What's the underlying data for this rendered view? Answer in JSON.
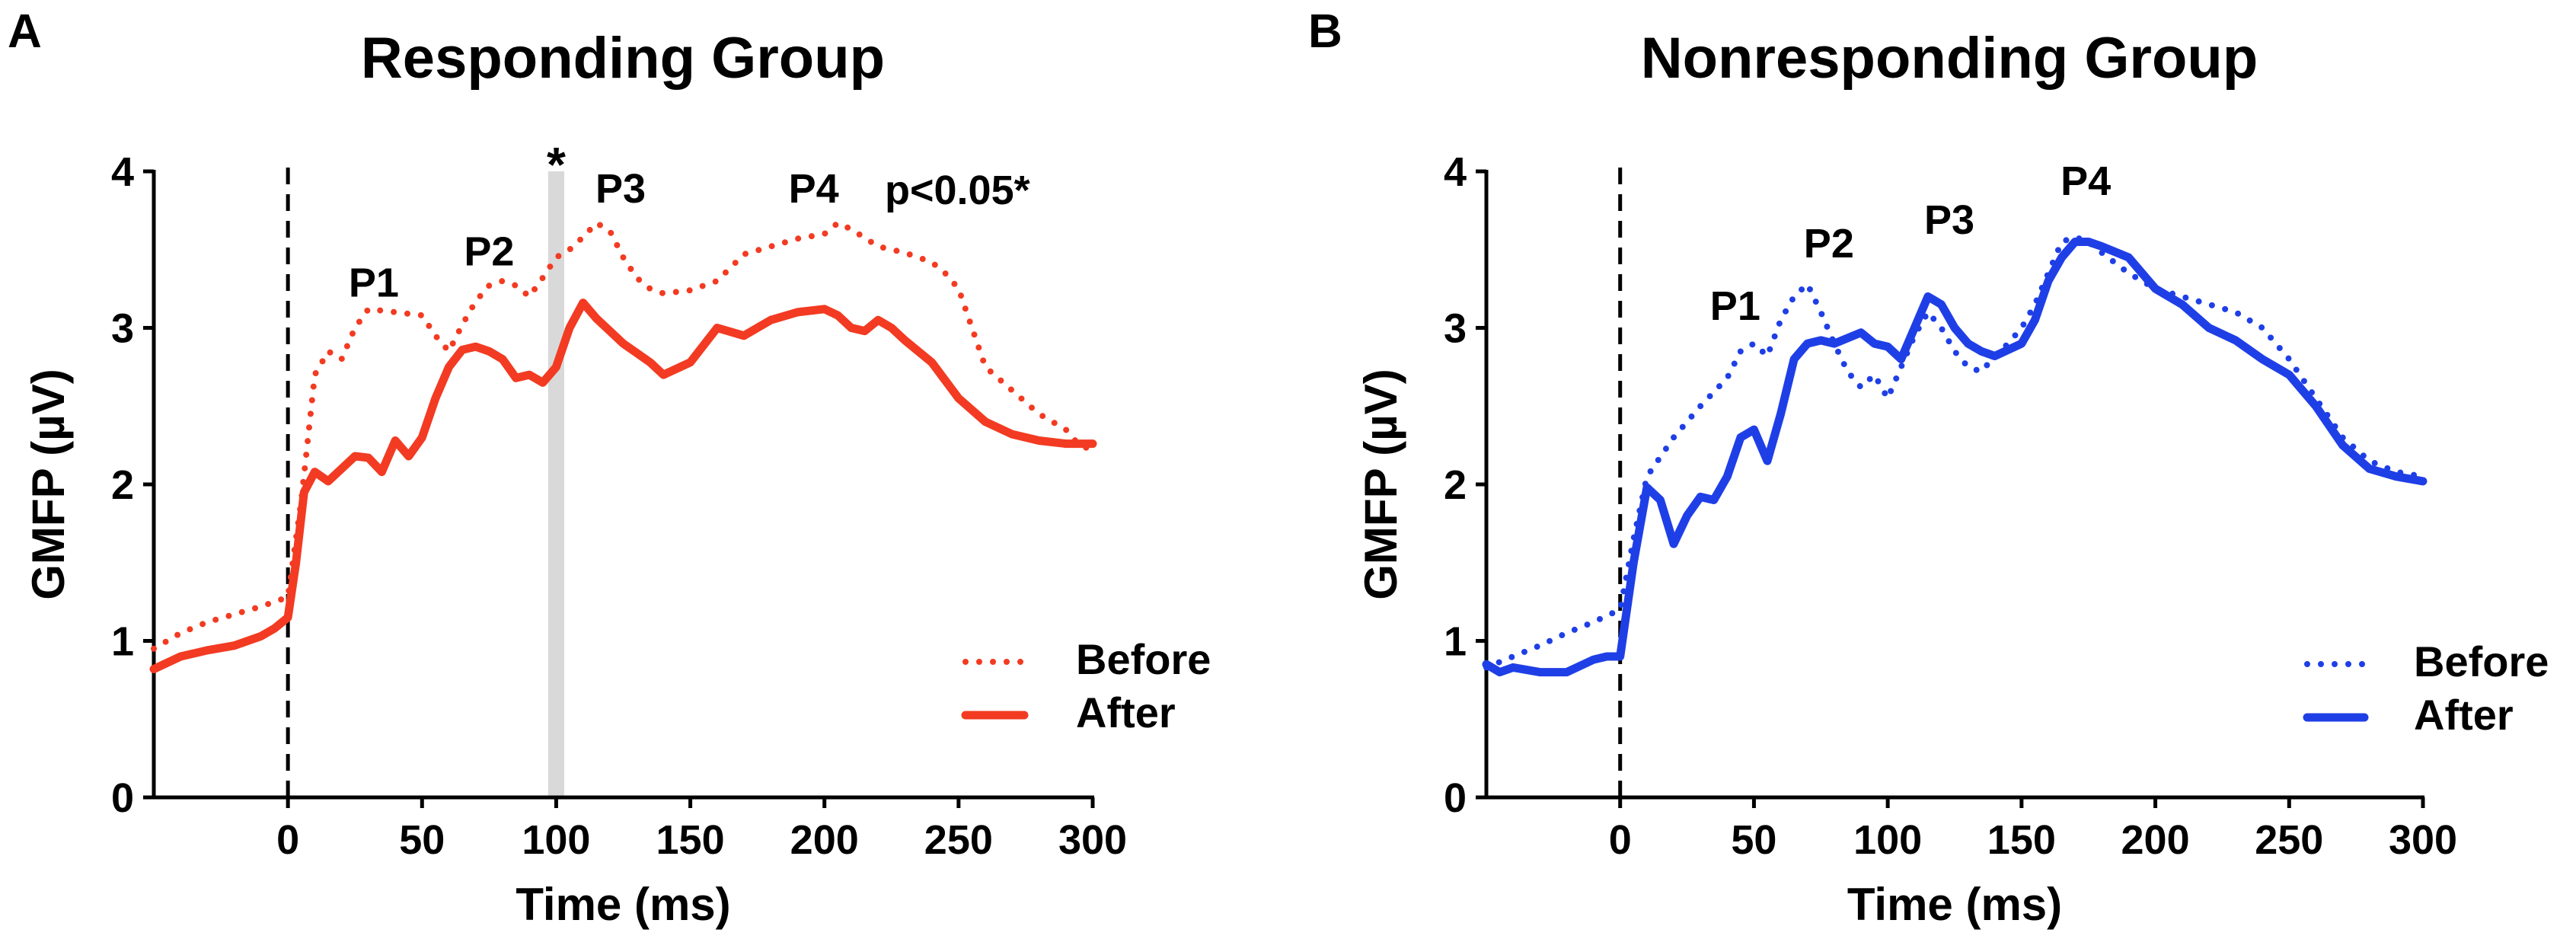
{
  "chart_data": [
    {
      "type": "line",
      "panel_label": "A",
      "title": "Responding Group",
      "xlabel": "Time (ms)",
      "ylabel": "GMFP (µV)",
      "xlim": [
        -50,
        300
      ],
      "ylim": [
        0,
        4
      ],
      "xticks": [
        0,
        50,
        100,
        150,
        200,
        250,
        300
      ],
      "yticks": [
        0,
        1,
        2,
        3,
        4
      ],
      "vline_x": 0,
      "shaded_x": [
        97,
        103
      ],
      "shaded_marker": "*",
      "significance_text": "p<0.05*",
      "legend_position": "bottom-right",
      "peak_labels": [
        {
          "text": "P1",
          "x": 32,
          "y": 3.2
        },
        {
          "text": "P2",
          "x": 75,
          "y": 3.4
        },
        {
          "text": "P3",
          "x": 124,
          "y": 3.8
        },
        {
          "text": "P4",
          "x": 196,
          "y": 3.8
        }
      ],
      "series": [
        {
          "name": "Before",
          "style": "dotted",
          "color": "#f23b22",
          "x": [
            -50,
            -40,
            -30,
            -20,
            -10,
            0,
            5,
            10,
            15,
            20,
            25,
            30,
            40,
            50,
            55,
            60,
            65,
            70,
            75,
            80,
            85,
            90,
            95,
            100,
            105,
            110,
            115,
            120,
            125,
            130,
            135,
            140,
            150,
            160,
            170,
            180,
            190,
            200,
            205,
            210,
            220,
            230,
            240,
            245,
            250,
            255,
            260,
            270,
            280,
            290,
            295,
            300
          ],
          "y": [
            0.95,
            1.05,
            1.12,
            1.17,
            1.22,
            1.28,
            1.9,
            2.7,
            2.85,
            2.8,
            3.0,
            3.12,
            3.1,
            3.08,
            2.95,
            2.85,
            3.02,
            3.17,
            3.27,
            3.3,
            3.27,
            3.2,
            3.32,
            3.45,
            3.5,
            3.58,
            3.67,
            3.62,
            3.45,
            3.32,
            3.25,
            3.22,
            3.24,
            3.3,
            3.47,
            3.52,
            3.57,
            3.6,
            3.67,
            3.63,
            3.52,
            3.48,
            3.42,
            3.35,
            3.25,
            3.0,
            2.75,
            2.6,
            2.45,
            2.35,
            2.25,
            2.22
          ]
        },
        {
          "name": "After",
          "style": "solid",
          "color": "#f23b22",
          "x": [
            -50,
            -40,
            -30,
            -20,
            -10,
            -5,
            0,
            3,
            6,
            10,
            15,
            20,
            25,
            30,
            35,
            40,
            45,
            50,
            55,
            60,
            65,
            70,
            75,
            80,
            85,
            90,
            95,
            100,
            105,
            110,
            115,
            120,
            125,
            130,
            135,
            140,
            150,
            160,
            170,
            175,
            180,
            190,
            200,
            205,
            210,
            215,
            220,
            225,
            230,
            240,
            250,
            260,
            270,
            280,
            290,
            300
          ],
          "y": [
            0.82,
            0.9,
            0.94,
            0.97,
            1.03,
            1.08,
            1.15,
            1.5,
            1.95,
            2.08,
            2.02,
            2.1,
            2.18,
            2.17,
            2.08,
            2.28,
            2.18,
            2.3,
            2.55,
            2.75,
            2.86,
            2.88,
            2.85,
            2.8,
            2.68,
            2.7,
            2.65,
            2.75,
            3.0,
            3.16,
            3.06,
            2.98,
            2.9,
            2.84,
            2.78,
            2.7,
            2.78,
            3.0,
            2.95,
            3.0,
            3.05,
            3.1,
            3.12,
            3.08,
            3.0,
            2.98,
            3.05,
            3.0,
            2.92,
            2.78,
            2.55,
            2.4,
            2.32,
            2.28,
            2.26,
            2.26
          ]
        }
      ]
    },
    {
      "type": "line",
      "panel_label": "B",
      "title": "Nonresponding Group",
      "xlabel": "Time (ms)",
      "ylabel": "GMFP (µV)",
      "xlim": [
        -50,
        300
      ],
      "ylim": [
        0,
        4
      ],
      "xticks": [
        0,
        50,
        100,
        150,
        200,
        250,
        300
      ],
      "yticks": [
        0,
        1,
        2,
        3,
        4
      ],
      "vline_x": 0,
      "legend_position": "bottom-right",
      "peak_labels": [
        {
          "text": "P1",
          "x": 43,
          "y": 3.05
        },
        {
          "text": "P2",
          "x": 78,
          "y": 3.45
        },
        {
          "text": "P3",
          "x": 123,
          "y": 3.6
        },
        {
          "text": "P4",
          "x": 174,
          "y": 3.85
        }
      ],
      "series": [
        {
          "name": "Before",
          "style": "dotted",
          "color": "#1f3fe6",
          "x": [
            -50,
            -40,
            -30,
            -20,
            -10,
            0,
            5,
            10,
            20,
            30,
            40,
            45,
            50,
            55,
            60,
            65,
            70,
            75,
            80,
            85,
            90,
            95,
            100,
            105,
            110,
            115,
            120,
            125,
            130,
            135,
            140,
            145,
            150,
            155,
            160,
            165,
            170,
            175,
            180,
            190,
            200,
            210,
            220,
            230,
            240,
            250,
            260,
            270,
            280,
            290,
            300
          ],
          "y": [
            0.83,
            0.9,
            0.97,
            1.05,
            1.12,
            1.2,
            1.65,
            2.05,
            2.3,
            2.5,
            2.68,
            2.85,
            2.9,
            2.82,
            3.05,
            3.2,
            3.28,
            3.1,
            2.9,
            2.72,
            2.62,
            2.7,
            2.55,
            2.75,
            2.95,
            3.1,
            3.0,
            2.85,
            2.75,
            2.72,
            2.82,
            2.9,
            3.0,
            3.15,
            3.35,
            3.55,
            3.58,
            3.55,
            3.48,
            3.35,
            3.25,
            3.2,
            3.15,
            3.1,
            3.0,
            2.8,
            2.55,
            2.3,
            2.15,
            2.08,
            2.05
          ]
        },
        {
          "name": "After",
          "style": "solid",
          "color": "#1f3fe6",
          "x": [
            -50,
            -45,
            -40,
            -30,
            -20,
            -10,
            -5,
            0,
            5,
            10,
            15,
            20,
            25,
            30,
            35,
            40,
            45,
            50,
            55,
            60,
            65,
            70,
            75,
            80,
            90,
            95,
            100,
            105,
            110,
            115,
            120,
            125,
            130,
            135,
            140,
            150,
            155,
            160,
            165,
            170,
            175,
            180,
            190,
            200,
            210,
            220,
            230,
            240,
            250,
            260,
            270,
            280,
            290,
            300
          ],
          "y": [
            0.85,
            0.8,
            0.83,
            0.8,
            0.8,
            0.88,
            0.9,
            0.9,
            1.5,
            1.98,
            1.9,
            1.62,
            1.8,
            1.92,
            1.9,
            2.05,
            2.3,
            2.35,
            2.15,
            2.45,
            2.8,
            2.9,
            2.92,
            2.9,
            2.97,
            2.9,
            2.88,
            2.8,
            3.0,
            3.2,
            3.15,
            3.0,
            2.9,
            2.85,
            2.82,
            2.9,
            3.05,
            3.3,
            3.45,
            3.55,
            3.55,
            3.52,
            3.45,
            3.25,
            3.15,
            3.0,
            2.92,
            2.8,
            2.7,
            2.5,
            2.25,
            2.1,
            2.05,
            2.02
          ]
        }
      ]
    }
  ]
}
